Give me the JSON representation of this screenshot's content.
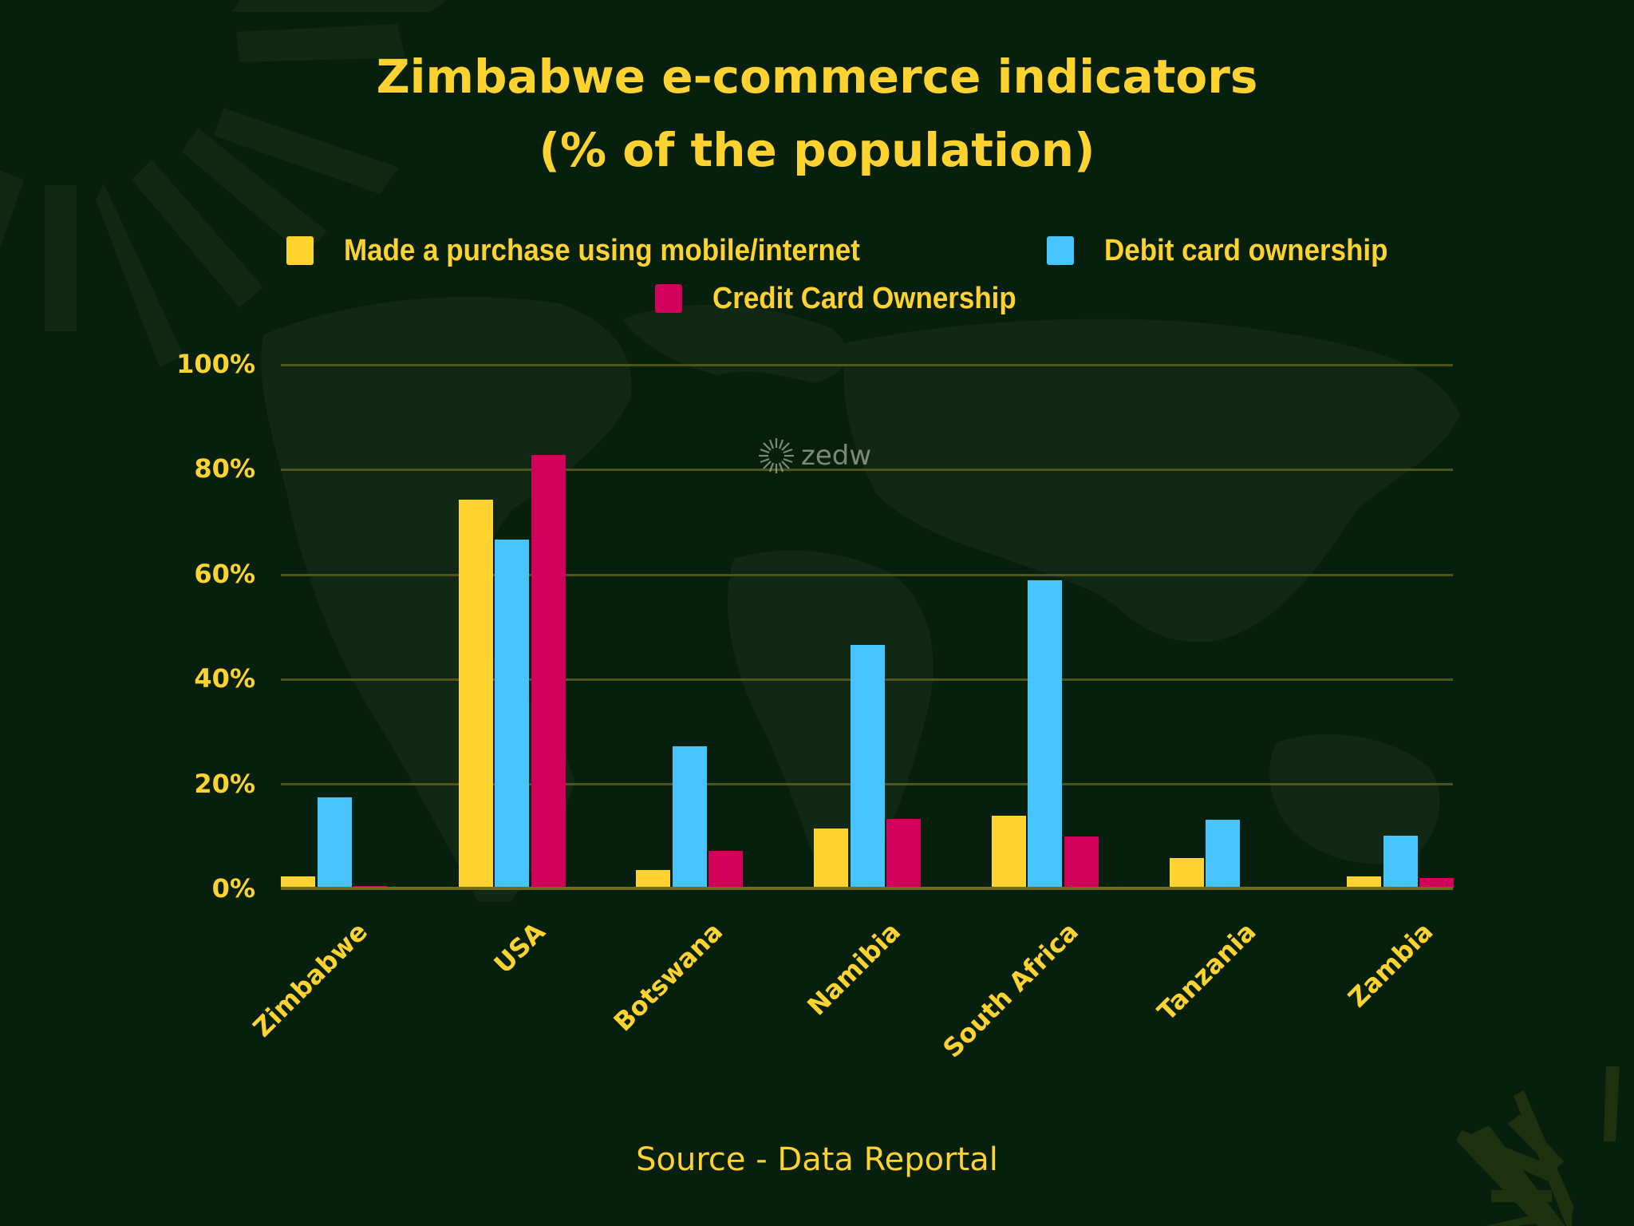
{
  "title": {
    "line1": "Zimbabwe e-commerce indicators",
    "line2": "(% of the population)"
  },
  "legend": [
    {
      "label": "Made a purchase using mobile/internet",
      "color": "#fed32f"
    },
    {
      "label": "Debit card ownership",
      "color": "#47c3fd"
    },
    {
      "label": "Credit Card Ownership",
      "color": "#d0005b"
    }
  ],
  "watermark": "zedw",
  "source": "Source - Data Reportal",
  "colors": {
    "background": "#07200d",
    "text": "#fed32f",
    "gridline": "#4f5418",
    "decoration": "#1f3210"
  },
  "yticks": [
    "100%",
    "80%",
    "60%",
    "40%",
    "20%",
    "0%"
  ],
  "chart_data": {
    "type": "bar",
    "title": "Zimbabwe e-commerce indicators (% of the population)",
    "xlabel": "",
    "ylabel": "",
    "ylim": [
      0,
      100
    ],
    "ytick_labels": [
      "0%",
      "20%",
      "40%",
      "60%",
      "80%",
      "100%"
    ],
    "grid": true,
    "legend_position": "top",
    "categories": [
      "Zimbabwe",
      "USA",
      "Botswana",
      "Namibia",
      "South Africa",
      "Tanzania",
      "Zambia"
    ],
    "series": [
      {
        "name": "Made a purchase using mobile/internet",
        "color": "#fed32f",
        "values": [
          2.3,
          74.3,
          3.5,
          11.4,
          13.9,
          5.8,
          2.3
        ]
      },
      {
        "name": "Debit card ownership",
        "color": "#47c3fd",
        "values": [
          17.4,
          66.6,
          27.1,
          46.5,
          58.9,
          13.1,
          10.0
        ]
      },
      {
        "name": "Credit Card Ownership",
        "color": "#d0005b",
        "values": [
          0.5,
          82.8,
          7.1,
          13.2,
          9.9,
          0.2,
          2.0
        ]
      }
    ],
    "annotations": [
      "Source - Data Reportal"
    ]
  }
}
